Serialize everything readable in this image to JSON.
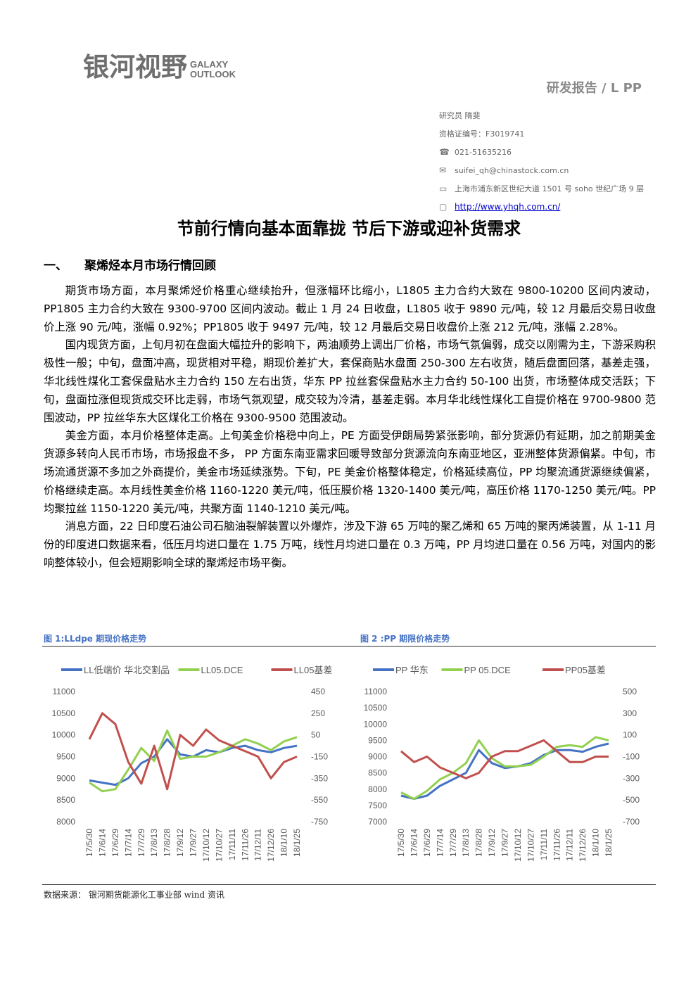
{
  "header": {
    "logo_cn": "银河视野",
    "logo_en_1": "GALAXY",
    "logo_en_2": "OUTLOOK",
    "report_type": "研发报告  / L PP"
  },
  "analyst": {
    "researcher": "研究员   隋斐",
    "license": "资格证编号：F3019741",
    "phone": "021-51635216",
    "email": "suifei_qh@chinastock.com.cn",
    "address": "上海市浦东新区世纪大道 1501 号 soho 世纪广场 9 层",
    "website": "http://www.yhqh.com.cn/"
  },
  "title": "节前行情向基本面靠拢  节后下游或迎补货需求",
  "section": {
    "num": "一、",
    "heading": "聚烯烃本月市场行情回顾"
  },
  "paragraphs": [
    "期货市场方面，本月聚烯烃价格重心继续抬升，但涨幅环比缩小，L1805 主力合约大致在 9800-10200 区间内波动，PP1805 主力合约大致在 9300-9700 区间内波动。截止 1 月 24 日收盘，L1805 收于 9890 元/吨，较 12 月最后交易日收盘价上涨 90 元/吨，涨幅 0.92%；PP1805 收于 9497 元/吨，较 12 月最后交易日收盘价上涨 212 元/吨，涨幅 2.28%。",
    "国内现货方面，上旬月初在盘面大幅拉升的影响下，两油顺势上调出厂价格，市场气氛偏弱，成交以刚需为主，下游采购积极性一般；中旬，盘面冲高，现货相对平稳，期现价差扩大，套保商贴水盘面 250-300 左右收货，随后盘面回落，基差走强，华北线性煤化工套保盘贴水主力合约 150 左右出货，华东 PP 拉丝套保盘贴水主力合约 50-100 出货，市场整体成交活跃；下旬，盘面拉涨但现货成交环比走弱，市场气氛观望，成交较为冷清，基差走弱。本月华北线性煤化工自提价格在 9700-9800 范围波动，PP 拉丝华东大区煤化工价格在 9300-9500 范围波动。",
    "美金方面，本月价格整体走高。上旬美金价格稳中向上，PE 方面受伊朗局势紧张影响，部分货源仍有延期，加之前期美金货源多转向人民币市场，市场报盘不多， PP 方面东南亚需求回暖导致部分货源流向东南亚地区，亚洲整体货源偏紧。中旬，市场流通货源不多加之外商提价，美金市场延续涨势。下旬，PE 美金价格整体稳定，价格延续高位，PP 均聚流通货源继续偏紧，价格继续走高。本月线性美金价格 1160-1220 美元/吨，低压膜价格 1320-1400 美元/吨，高压价格 1170-1250 美元/吨。PP 均聚拉丝 1150-1220 美元/吨，共聚方面 1140-1210 美元/吨。",
    "消息方面，22 日印度石油公司石脑油裂解装置以外爆炸，涉及下游 65 万吨的聚乙烯和 65 万吨的聚丙烯装置，从 1-11 月份的印度进口数据来看，低压月均进口量在 1.75 万吨，线性月均进口量在 0.3 万吨，PP 月均进口量在 0.56 万吨，对国内的影响整体较小，但会短期影响全球的聚烯烃市场平衡。"
  ],
  "figures": {
    "fig1_caption": "图 1:LLdpe 期现价格走势",
    "fig2_caption": "图 2 :PP 期限价格走势"
  },
  "chart_data": [
    {
      "type": "line",
      "title": "",
      "x": [
        "17/5/30",
        "17/6/14",
        "17/6/29",
        "17/7/14",
        "17/7/29",
        "17/8/13",
        "17/8/28",
        "17/9/12",
        "17/9/27",
        "17/10/12",
        "17/10/27",
        "17/11/11",
        "17/11/26",
        "17/12/11",
        "17/12/26",
        "18/1/10",
        "18/1/25"
      ],
      "left_axis": {
        "min": 8000,
        "max": 11000,
        "ticks": [
          "11000",
          "10500",
          "10000",
          "9500",
          "9000",
          "8500",
          "8000"
        ]
      },
      "right_axis": {
        "min": -750,
        "max": 450,
        "ticks": [
          "450",
          "250",
          "50",
          "-150",
          "-350",
          "-550",
          "-750"
        ]
      },
      "series": [
        {
          "name": "LL低端价 华北交割品",
          "axis": "left",
          "color": "#4472c4",
          "values": [
            8950,
            8900,
            8850,
            9000,
            9350,
            9500,
            9900,
            9550,
            9500,
            9650,
            9600,
            9700,
            9750,
            9650,
            9600,
            9700,
            9750
          ]
        },
        {
          "name": "LL05.DCE",
          "axis": "left",
          "color": "#92d050",
          "values": [
            8900,
            8700,
            8750,
            9200,
            9700,
            9400,
            10100,
            9450,
            9500,
            9500,
            9600,
            9750,
            9900,
            9800,
            9650,
            9850,
            9950
          ]
        },
        {
          "name": "LL05基差",
          "axis": "right",
          "color": "#c0504d",
          "values": [
            10,
            250,
            150,
            -200,
            -400,
            -50,
            -450,
            50,
            -50,
            100,
            0,
            -50,
            -100,
            -150,
            -350,
            -200,
            -150
          ]
        }
      ]
    },
    {
      "type": "line",
      "title": "",
      "x": [
        "17/5/30",
        "17/6/14",
        "17/6/29",
        "17/7/14",
        "17/7/29",
        "17/8/13",
        "17/8/28",
        "17/9/12",
        "17/9/27",
        "17/10/12",
        "17/10/27",
        "17/11/11",
        "17/11/26",
        "17/12/11",
        "17/12/26",
        "18/1/10",
        "18/1/25"
      ],
      "left_axis": {
        "min": 7000,
        "max": 11000,
        "ticks": [
          "11000",
          "10500",
          "10000",
          "9500",
          "9000",
          "8500",
          "8000",
          "7500",
          "7000"
        ]
      },
      "right_axis": {
        "min": -700,
        "max": 500,
        "ticks": [
          "500",
          "300",
          "100",
          "-100",
          "-300",
          "-500",
          "-700"
        ]
      },
      "series": [
        {
          "name": "PP 华东",
          "axis": "left",
          "color": "#4472c4",
          "values": [
            7800,
            7700,
            7800,
            8100,
            8300,
            8500,
            9200,
            8800,
            8650,
            8700,
            8800,
            9050,
            9200,
            9200,
            9150,
            9300,
            9400
          ]
        },
        {
          "name": "PP 05.DCE",
          "axis": "left",
          "color": "#92d050",
          "values": [
            7900,
            7700,
            7950,
            8300,
            8500,
            8800,
            9500,
            8950,
            8700,
            8700,
            8750,
            9000,
            9300,
            9350,
            9300,
            9600,
            9500
          ]
        },
        {
          "name": "PP05基差",
          "axis": "right",
          "color": "#c0504d",
          "values": [
            -50,
            -150,
            -100,
            -200,
            -250,
            -300,
            -250,
            -100,
            -50,
            -50,
            0,
            50,
            -50,
            -150,
            -150,
            -100,
            -100
          ]
        }
      ]
    }
  ],
  "source": "数据来源：   银河期货能源化工事业部    wind 资讯"
}
